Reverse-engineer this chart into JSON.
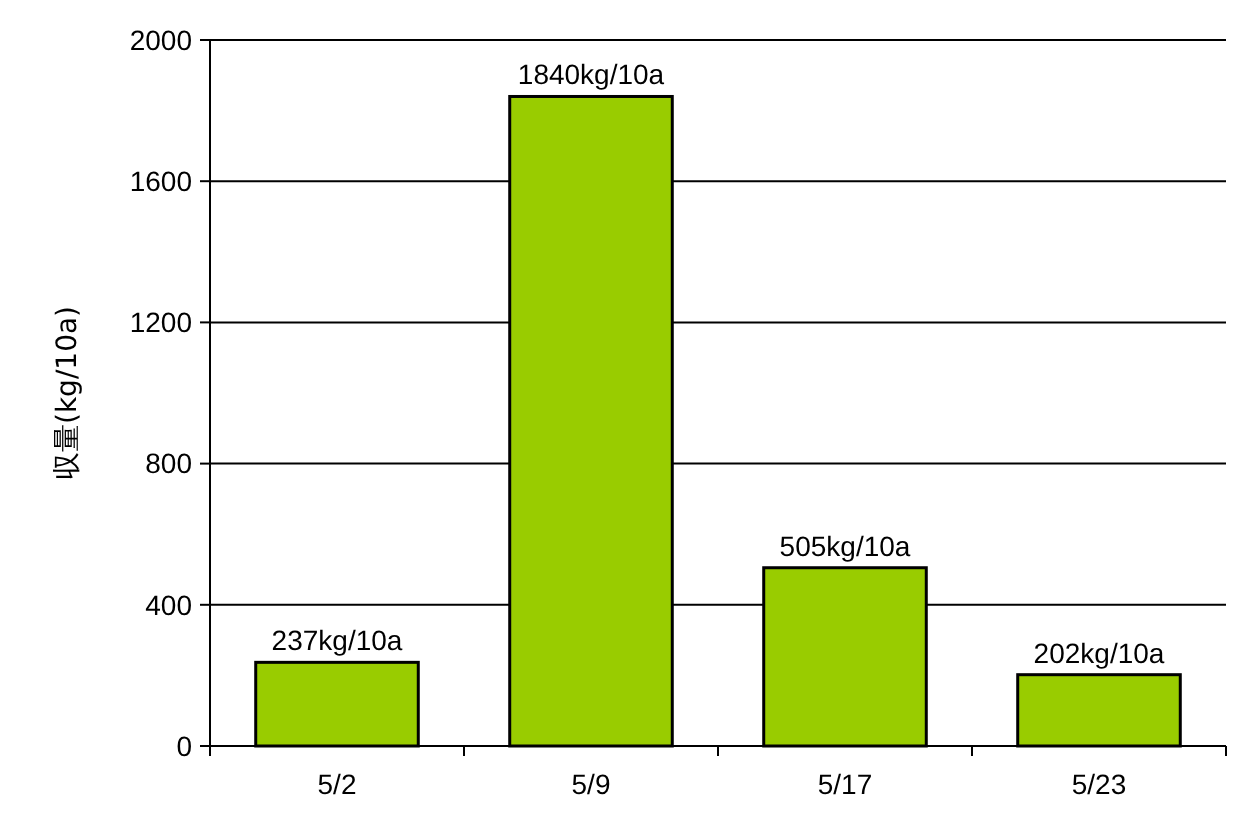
{
  "chart_data": {
    "type": "bar",
    "ylabel": "収量(kg/10a)",
    "categories": [
      "5/2",
      "5/9",
      "5/17",
      "5/23"
    ],
    "values": [
      237,
      1840,
      505,
      202
    ],
    "value_labels": [
      "237kg/10a",
      "1840kg/10a",
      "505kg/10a",
      "202kg/10a"
    ],
    "color": "#99cc00",
    "ylim": [
      0,
      2000
    ],
    "yticks": [
      0,
      400,
      800,
      1200,
      1600,
      2000
    ],
    "grid": "y"
  }
}
